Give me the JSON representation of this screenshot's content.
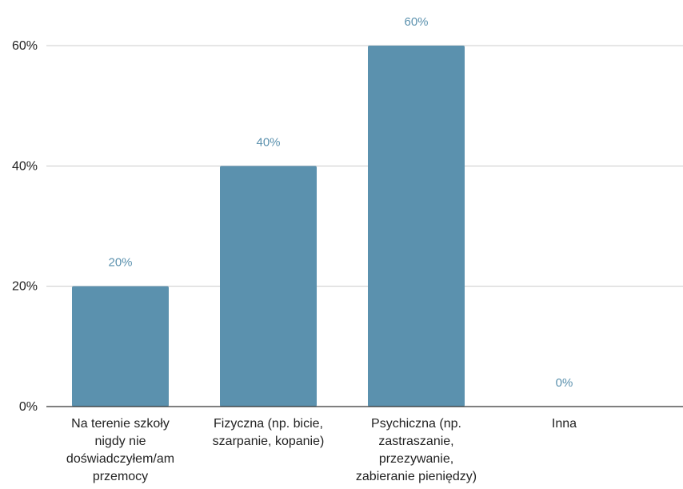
{
  "chart_data": {
    "type": "bar",
    "title": "",
    "xlabel": "",
    "ylabel": "",
    "categories": [
      [
        "Na terenie szkoły",
        "nigdy nie",
        "doświadczyłem/am",
        "przemocy"
      ],
      [
        "Fizyczna (np. bicie,",
        "szarpanie, kopanie)"
      ],
      [
        "Psychiczna (np.",
        "zastraszanie,",
        "przezywanie,",
        "zabieranie pieniędzy)"
      ],
      [
        "Inna"
      ]
    ],
    "values": [
      20,
      40,
      60,
      0
    ],
    "data_labels": [
      "20%",
      "40%",
      "60%",
      "0%"
    ],
    "ylim": [
      0,
      60
    ],
    "yticks": [
      0,
      20,
      40,
      60
    ],
    "ytick_labels": [
      "0%",
      "20%",
      "40%",
      "60%"
    ],
    "grid": true,
    "legend": "none",
    "colors": {
      "bar": "#5b91ae",
      "data_label": "#5b91ae",
      "grid": "#cccccc",
      "axis": "#333333"
    }
  }
}
